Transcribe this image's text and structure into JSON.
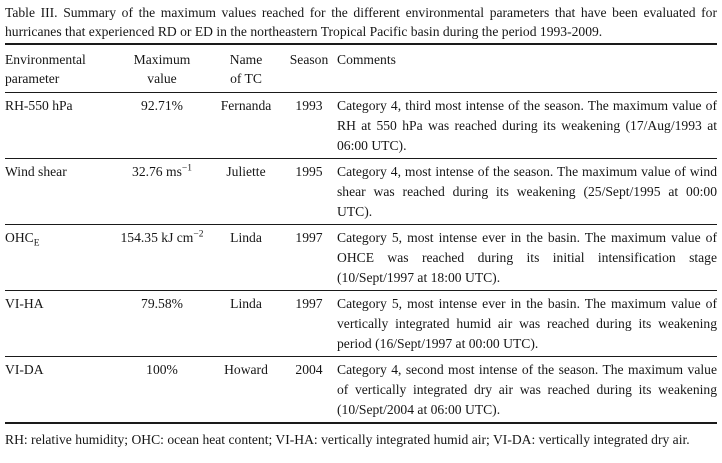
{
  "caption": "Table III. Summary of the maximum values reached for the different environmental parameters that have been evaluated for hurricanes that experienced RD or ED in the northeastern Tropical Pacific basin during the period 1993-2009.",
  "table": {
    "headers": {
      "param": "Environmental\nparameter",
      "value": "Maximum\nvalue",
      "name": "Name\nof TC",
      "season": "Season",
      "comments": "Comments"
    },
    "rows": [
      {
        "param": "RH-550 hPa",
        "param_sub": "",
        "value": "92.71%",
        "value_sup": "",
        "name": "Fernanda",
        "season": "1993",
        "comments": "Category 4, third most intense of the season. The maximum value of RH at 550 hPa was reached during its weakening (17/Aug/1993 at 06:00 UTC)."
      },
      {
        "param": "Wind shear",
        "param_sub": "",
        "value": "32.76 ms",
        "value_sup": "−1",
        "name": "Juliette",
        "season": "1995",
        "comments": "Category 4, most intense of the season. The maximum value of wind shear was reached during its weakening (25/Sept/1995 at 00:00 UTC)."
      },
      {
        "param": "OHC",
        "param_sub": "E",
        "value": "154.35 kJ cm",
        "value_sup": "−2",
        "name": "Linda",
        "season": "1997",
        "comments": "Category 5, most intense ever in the basin. The maximum value of OHCE was reached during its initial intensification stage (10/Sept/1997 at 18:00 UTC)."
      },
      {
        "param": "VI-HA",
        "param_sub": "",
        "value": "79.58%",
        "value_sup": "",
        "name": "Linda",
        "season": "1997",
        "comments": "Category 5, most intense ever in the basin. The maximum value of vertically integrated humid air was reached during its weakening period (16/Sept/1997 at 00:00 UTC)."
      },
      {
        "param": "VI-DA",
        "param_sub": "",
        "value": "100%",
        "value_sup": "",
        "name": "Howard",
        "season": "2004",
        "comments": "Category 4, second most intense of the season. The maximum value of vertically integrated dry air was reached during its weakening (10/Sept/2004 at 06:00 UTC)."
      }
    ]
  },
  "footnote": "RH: relative humidity; OHC: ocean heat content; VI-HA: vertically integrated humid air; VI-DA: vertically integrated dry air."
}
